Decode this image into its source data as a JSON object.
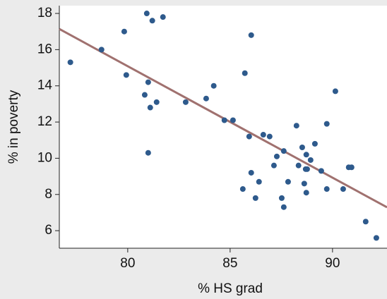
{
  "chart_data": {
    "type": "scatter",
    "x_label": "% HS grad",
    "y_label": "% in poverty",
    "xlim": [
      76.66,
      92.66
    ],
    "ylim": [
      5.03,
      18.43
    ],
    "xticks": [
      80,
      85,
      90
    ],
    "yticks": [
      6,
      8,
      10,
      12,
      14,
      16,
      18
    ],
    "series": [
      {
        "color": "#2e5a8c",
        "x": [
          77.2,
          78.72,
          79.83,
          79.93,
          80.93,
          81.2,
          81.72,
          81.0,
          80.83,
          81.1,
          81.41,
          81.0,
          82.83,
          83.83,
          84.2,
          84.72,
          85.14,
          85.72,
          86.03,
          85.93,
          86.03,
          85.62,
          86.41,
          86.24,
          86.62,
          86.93,
          87.28,
          87.14,
          87.62,
          87.52,
          87.62,
          87.83,
          88.24,
          88.34,
          88.52,
          88.72,
          88.93,
          89.14,
          88.69,
          88.76,
          88.62,
          88.72,
          89.45,
          89.72,
          89.72,
          90.14,
          90.79,
          90.93,
          90.52,
          91.62,
          92.14
        ],
        "values": [
          15.3,
          16.0,
          17.0,
          14.6,
          18.0,
          17.6,
          17.8,
          14.2,
          13.5,
          12.8,
          13.1,
          10.3,
          13.1,
          13.3,
          14.0,
          12.1,
          12.1,
          14.7,
          16.8,
          11.2,
          9.2,
          8.3,
          8.7,
          7.8,
          11.3,
          11.2,
          10.1,
          9.6,
          10.4,
          7.8,
          7.3,
          8.7,
          11.8,
          9.6,
          10.6,
          10.2,
          9.9,
          10.8,
          9.4,
          9.4,
          8.6,
          8.1,
          9.3,
          11.9,
          8.3,
          13.7,
          9.5,
          9.5,
          8.3,
          6.5,
          5.6
        ]
      }
    ],
    "fit_line": {
      "color": "#a0716f",
      "x": [
        76.66,
        92.66
      ],
      "values": [
        17.14,
        7.29
      ]
    }
  }
}
